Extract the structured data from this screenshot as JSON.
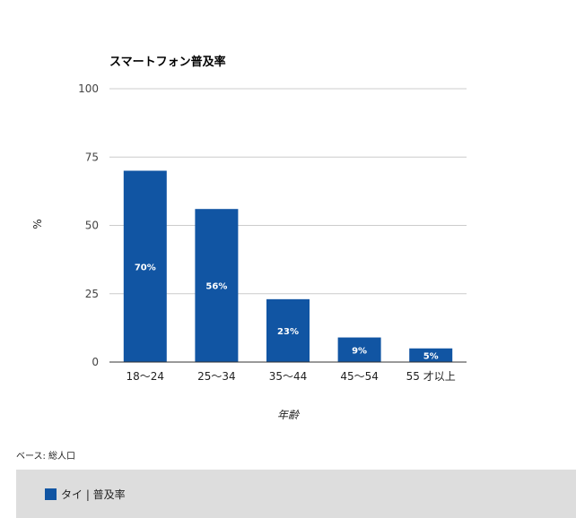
{
  "colors": {
    "bar": "#1155a3",
    "grid": "#cccccc",
    "axis": "#333333",
    "legend_bg": "#dddddd"
  },
  "note": "ベース: 総人口",
  "legend": {
    "items": [
      {
        "label": "タイ | 普及率",
        "color": "#1155a3"
      }
    ]
  },
  "chart_data": {
    "type": "bar",
    "title": "スマートフォン普及率",
    "xlabel": "年齢",
    "ylabel": "%",
    "ylim": [
      0,
      100
    ],
    "yticks": [
      0,
      25,
      50,
      75,
      100
    ],
    "grid": true,
    "legend_position": "bottom",
    "categories": [
      "18〜24",
      "25〜34",
      "35〜44",
      "45〜54",
      "55 才以上"
    ],
    "series": [
      {
        "name": "タイ | 普及率",
        "values": [
          70,
          56,
          23,
          9,
          5
        ],
        "labels": [
          "70%",
          "56%",
          "23%",
          "9%",
          "5%"
        ]
      }
    ]
  }
}
